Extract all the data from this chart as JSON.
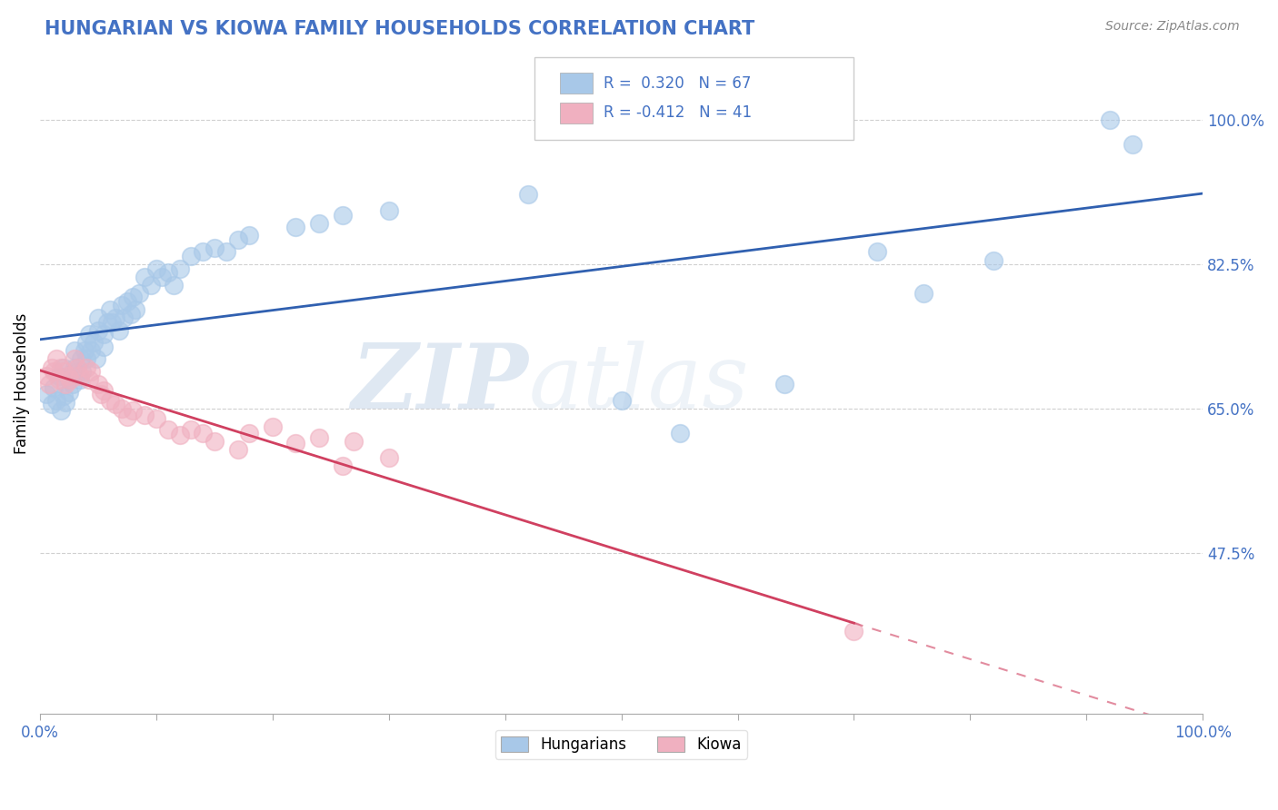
{
  "title": "HUNGARIAN VS KIOWA FAMILY HOUSEHOLDS CORRELATION CHART",
  "source": "Source: ZipAtlas.com",
  "ylabel": "Family Households",
  "xlim": [
    0.0,
    1.0
  ],
  "ylim": [
    0.28,
    1.08
  ],
  "yticks": [
    0.475,
    0.65,
    0.825,
    1.0
  ],
  "ytick_labels": [
    "47.5%",
    "65.0%",
    "82.5%",
    "100.0%"
  ],
  "xticks": [
    0.0,
    0.1,
    0.2,
    0.3,
    0.4,
    0.5,
    0.6,
    0.7,
    0.8,
    0.9,
    1.0
  ],
  "watermark": "ZIPatlas",
  "legend_labels": [
    "Hungarians",
    "Kiowa"
  ],
  "hungarian_R": 0.32,
  "hungarian_N": 67,
  "kiowa_R": -0.412,
  "kiowa_N": 41,
  "hungarian_color": "#a8c8e8",
  "kiowa_color": "#f0b0c0",
  "hungarian_line_color": "#3060b0",
  "kiowa_line_color": "#d04060",
  "background_color": "#ffffff",
  "hungarian_scatter": [
    [
      0.005,
      0.668
    ],
    [
      0.01,
      0.655
    ],
    [
      0.012,
      0.675
    ],
    [
      0.014,
      0.66
    ],
    [
      0.016,
      0.69
    ],
    [
      0.018,
      0.648
    ],
    [
      0.02,
      0.7
    ],
    [
      0.02,
      0.665
    ],
    [
      0.022,
      0.658
    ],
    [
      0.025,
      0.685
    ],
    [
      0.025,
      0.67
    ],
    [
      0.028,
      0.68
    ],
    [
      0.03,
      0.72
    ],
    [
      0.03,
      0.7
    ],
    [
      0.032,
      0.695
    ],
    [
      0.034,
      0.685
    ],
    [
      0.035,
      0.71
    ],
    [
      0.036,
      0.695
    ],
    [
      0.038,
      0.72
    ],
    [
      0.04,
      0.73
    ],
    [
      0.04,
      0.71
    ],
    [
      0.042,
      0.74
    ],
    [
      0.044,
      0.72
    ],
    [
      0.046,
      0.73
    ],
    [
      0.048,
      0.71
    ],
    [
      0.05,
      0.76
    ],
    [
      0.05,
      0.745
    ],
    [
      0.055,
      0.74
    ],
    [
      0.055,
      0.725
    ],
    [
      0.058,
      0.755
    ],
    [
      0.06,
      0.77
    ],
    [
      0.062,
      0.755
    ],
    [
      0.065,
      0.76
    ],
    [
      0.068,
      0.745
    ],
    [
      0.07,
      0.775
    ],
    [
      0.072,
      0.76
    ],
    [
      0.075,
      0.78
    ],
    [
      0.078,
      0.765
    ],
    [
      0.08,
      0.785
    ],
    [
      0.082,
      0.77
    ],
    [
      0.085,
      0.79
    ],
    [
      0.09,
      0.81
    ],
    [
      0.095,
      0.8
    ],
    [
      0.1,
      0.82
    ],
    [
      0.105,
      0.81
    ],
    [
      0.11,
      0.815
    ],
    [
      0.115,
      0.8
    ],
    [
      0.12,
      0.82
    ],
    [
      0.13,
      0.835
    ],
    [
      0.14,
      0.84
    ],
    [
      0.15,
      0.845
    ],
    [
      0.16,
      0.84
    ],
    [
      0.17,
      0.855
    ],
    [
      0.18,
      0.86
    ],
    [
      0.22,
      0.87
    ],
    [
      0.24,
      0.875
    ],
    [
      0.26,
      0.885
    ],
    [
      0.3,
      0.89
    ],
    [
      0.42,
      0.91
    ],
    [
      0.5,
      0.66
    ],
    [
      0.55,
      0.62
    ],
    [
      0.64,
      0.68
    ],
    [
      0.72,
      0.84
    ],
    [
      0.76,
      0.79
    ],
    [
      0.82,
      0.83
    ],
    [
      0.92,
      1.0
    ],
    [
      0.94,
      0.97
    ]
  ],
  "kiowa_scatter": [
    [
      0.005,
      0.69
    ],
    [
      0.008,
      0.68
    ],
    [
      0.01,
      0.7
    ],
    [
      0.012,
      0.695
    ],
    [
      0.014,
      0.71
    ],
    [
      0.016,
      0.685
    ],
    [
      0.018,
      0.7
    ],
    [
      0.02,
      0.695
    ],
    [
      0.022,
      0.68
    ],
    [
      0.024,
      0.69
    ],
    [
      0.026,
      0.685
    ],
    [
      0.03,
      0.71
    ],
    [
      0.032,
      0.7
    ],
    [
      0.034,
      0.69
    ],
    [
      0.04,
      0.7
    ],
    [
      0.042,
      0.685
    ],
    [
      0.044,
      0.695
    ],
    [
      0.05,
      0.68
    ],
    [
      0.052,
      0.668
    ],
    [
      0.055,
      0.672
    ],
    [
      0.06,
      0.66
    ],
    [
      0.065,
      0.655
    ],
    [
      0.07,
      0.65
    ],
    [
      0.075,
      0.64
    ],
    [
      0.08,
      0.648
    ],
    [
      0.09,
      0.642
    ],
    [
      0.1,
      0.638
    ],
    [
      0.11,
      0.625
    ],
    [
      0.12,
      0.618
    ],
    [
      0.13,
      0.625
    ],
    [
      0.14,
      0.62
    ],
    [
      0.15,
      0.61
    ],
    [
      0.17,
      0.6
    ],
    [
      0.18,
      0.62
    ],
    [
      0.2,
      0.628
    ],
    [
      0.22,
      0.608
    ],
    [
      0.24,
      0.615
    ],
    [
      0.26,
      0.58
    ],
    [
      0.27,
      0.61
    ],
    [
      0.3,
      0.59
    ],
    [
      0.7,
      0.38
    ]
  ]
}
